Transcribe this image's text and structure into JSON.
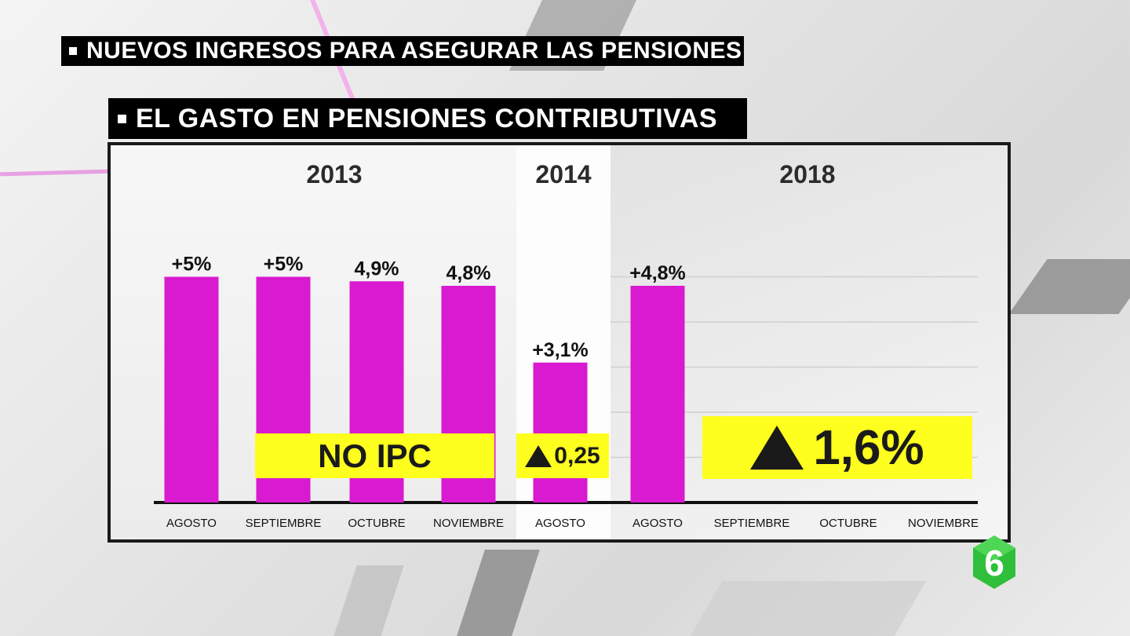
{
  "headers": {
    "primary": "NUEVOS INGRESOS PARA ASEGURAR LAS PENSIONES",
    "secondary": "EL GASTO EN PENSIONES CONTRIBUTIVAS"
  },
  "chart_data": {
    "type": "bar",
    "title": "EL GASTO EN PENSIONES CONTRIBUTIVAS",
    "xlabel": "",
    "ylabel": "",
    "ylim": [
      0,
      6
    ],
    "grid": true,
    "groups": [
      {
        "year": "2013",
        "categories": [
          "AGOSTO",
          "SEPTIEMBRE",
          "OCTUBRE",
          "NOVIEMBRE"
        ],
        "values": [
          5,
          5,
          4.9,
          4.8
        ],
        "labels": [
          "+5%",
          "+5%",
          "4,9%",
          "4,8%"
        ]
      },
      {
        "year": "2014",
        "categories": [
          "AGOSTO"
        ],
        "values": [
          3.1
        ],
        "labels": [
          "+3,1%"
        ]
      },
      {
        "year": "2018",
        "categories": [
          "AGOSTO",
          "SEPTIEMBRE",
          "OCTUBRE",
          "NOVIEMBRE"
        ],
        "values": [
          4.8,
          null,
          null,
          null
        ],
        "labels": [
          "+4,8%",
          "",
          "",
          ""
        ]
      }
    ],
    "bar_color": "#d91ad0",
    "annotations": [
      {
        "text": "NO IPC",
        "group": "2013"
      },
      {
        "text": "0,25",
        "arrow": "up",
        "group": "2014"
      },
      {
        "text": "1,6%",
        "arrow": "up",
        "group": "2018"
      }
    ]
  },
  "callouts": {
    "noipc": "NO IPC",
    "v2014": "0,25",
    "v2018": "1,6%"
  },
  "logo": {
    "text": "6"
  },
  "colors": {
    "bar": "#d91ad0",
    "callout": "#ffff1f",
    "header_bg": "#000000"
  }
}
